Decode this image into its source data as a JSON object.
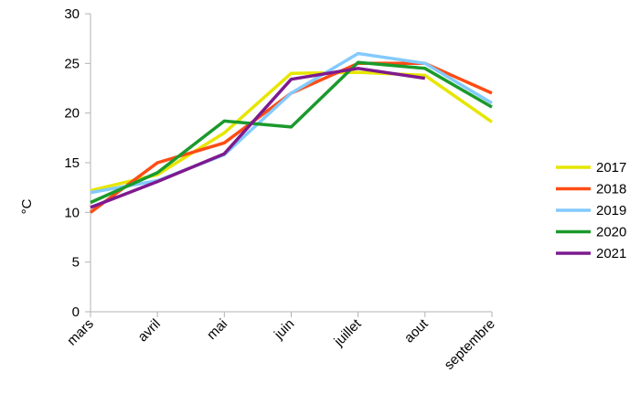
{
  "chart_data": {
    "type": "line",
    "categories": [
      "mars",
      "avril",
      "mai",
      "juin",
      "juillet",
      "aout",
      "septembre"
    ],
    "ylabel": "°C",
    "ylim": [
      0,
      30
    ],
    "yticks": [
      0,
      5,
      10,
      15,
      20,
      25,
      30
    ],
    "grid": false,
    "legend_position": "right",
    "series": [
      {
        "name": "2017",
        "color": "#e6e600",
        "values": [
          12.2,
          13.8,
          18.0,
          24.0,
          24.1,
          23.8,
          19.1
        ]
      },
      {
        "name": "2018",
        "color": "#ff4c14",
        "values": [
          10.0,
          15.0,
          17.0,
          22.0,
          25.0,
          25.0,
          22.0
        ]
      },
      {
        "name": "2019",
        "color": "#83caff",
        "values": [
          12.0,
          13.2,
          15.8,
          22.0,
          26.0,
          25.0,
          21.0
        ]
      },
      {
        "name": "2020",
        "color": "#1a9a2c",
        "values": [
          11.0,
          14.0,
          19.2,
          18.6,
          25.1,
          24.5,
          20.6
        ]
      },
      {
        "name": "2021",
        "color": "#7e1a8f",
        "values": [
          10.5,
          13.1,
          15.9,
          23.4,
          24.5,
          23.5,
          null
        ]
      }
    ]
  }
}
